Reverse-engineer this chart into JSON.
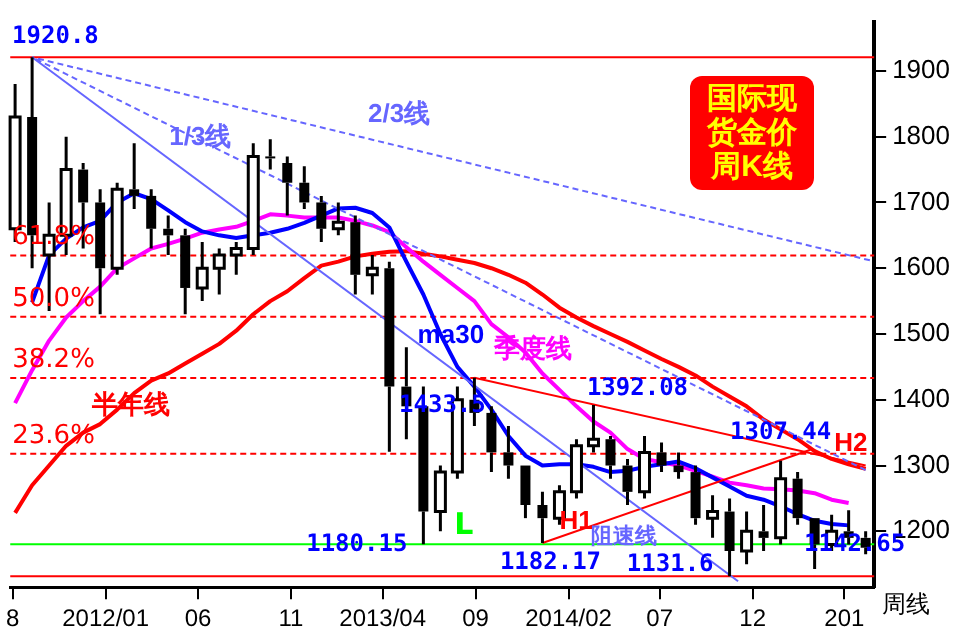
{
  "chart_data": {
    "type": "candlestick",
    "title": "国际现货金价周K线",
    "xlabel": "周线",
    "x": [
      "2011-08-05",
      "2011-09-02",
      "2011-09-30",
      "2011-10-28",
      "2011-11-25",
      "2011-12-23",
      "2012-01-20",
      "2012-02-17",
      "2012-03-16",
      "2012-04-13",
      "2012-05-11",
      "2012-06-08",
      "2012-07-06",
      "2012-08-03",
      "2012-08-31",
      "2012-09-28",
      "2012-10-26",
      "2012-11-23",
      "2012-12-21",
      "2013-01-18",
      "2013-02-15",
      "2013-03-15",
      "2013-04-12",
      "2013-05-10",
      "2013-06-07",
      "2013-07-05",
      "2013-08-02",
      "2013-08-30",
      "2013-09-27",
      "2013-10-25",
      "2013-11-22",
      "2013-12-20",
      "2014-01-17",
      "2014-02-14",
      "2014-03-14",
      "2014-04-11",
      "2014-05-09",
      "2014-06-06",
      "2014-07-04",
      "2014-08-01",
      "2014-08-29",
      "2014-09-26",
      "2014-10-24",
      "2014-11-21",
      "2014-12-19",
      "2015-01-16",
      "2015-02-13",
      "2015-03-13",
      "2015-04-10",
      "2015-05-08",
      "2015-06-05"
    ],
    "ohlc": [
      [
        1660,
        1880,
        1640,
        1830
      ],
      [
        1830,
        1920.8,
        1600,
        1650
      ],
      [
        1620,
        1700,
        1535,
        1650
      ],
      [
        1650,
        1800,
        1620,
        1750
      ],
      [
        1750,
        1760,
        1630,
        1700
      ],
      [
        1700,
        1720,
        1530,
        1600
      ],
      [
        1600,
        1730,
        1590,
        1720
      ],
      [
        1720,
        1790,
        1690,
        1710
      ],
      [
        1710,
        1720,
        1630,
        1660
      ],
      [
        1660,
        1680,
        1620,
        1650
      ],
      [
        1650,
        1660,
        1530,
        1570
      ],
      [
        1570,
        1640,
        1550,
        1600
      ],
      [
        1600,
        1630,
        1560,
        1620
      ],
      [
        1620,
        1640,
        1590,
        1630
      ],
      [
        1630,
        1790,
        1620,
        1770
      ],
      [
        1770,
        1796,
        1750,
        1770
      ],
      [
        1760,
        1770,
        1680,
        1730
      ],
      [
        1730,
        1755,
        1690,
        1700
      ],
      [
        1700,
        1710,
        1640,
        1660
      ],
      [
        1660,
        1700,
        1650,
        1670
      ],
      [
        1670,
        1680,
        1560,
        1590
      ],
      [
        1590,
        1620,
        1560,
        1600
      ],
      [
        1600,
        1610,
        1321,
        1420
      ],
      [
        1420,
        1480,
        1340,
        1390
      ],
      [
        1390,
        1420,
        1180.15,
        1230
      ],
      [
        1230,
        1300,
        1200,
        1290
      ],
      [
        1290,
        1420,
        1280,
        1400
      ],
      [
        1400,
        1433.5,
        1360,
        1380
      ],
      [
        1380,
        1390,
        1290,
        1320
      ],
      [
        1320,
        1360,
        1280,
        1300
      ],
      [
        1300,
        1300,
        1220,
        1240
      ],
      [
        1240,
        1260,
        1182.17,
        1220
      ],
      [
        1220,
        1270,
        1210,
        1260
      ],
      [
        1260,
        1340,
        1250,
        1330
      ],
      [
        1330,
        1392.08,
        1320,
        1340
      ],
      [
        1340,
        1345,
        1280,
        1300
      ],
      [
        1300,
        1310,
        1240,
        1260
      ],
      [
        1260,
        1345,
        1250,
        1320
      ],
      [
        1320,
        1335,
        1290,
        1300
      ],
      [
        1300,
        1320,
        1280,
        1290
      ],
      [
        1290,
        1300,
        1210,
        1220
      ],
      [
        1220,
        1255,
        1190,
        1230
      ],
      [
        1230,
        1250,
        1131.6,
        1170
      ],
      [
        1170,
        1230,
        1150,
        1200
      ],
      [
        1200,
        1240,
        1170,
        1190
      ],
      [
        1190,
        1307.44,
        1180,
        1280
      ],
      [
        1280,
        1290,
        1210,
        1220
      ],
      [
        1220,
        1220,
        1142.65,
        1180
      ],
      [
        1180,
        1225,
        1170,
        1200
      ],
      [
        1200,
        1232,
        1180,
        1190
      ],
      [
        1190,
        1200,
        1165,
        1175
      ]
    ],
    "series": [
      {
        "name": "ma30",
        "type": "line",
        "color": "#0000ff",
        "values": [
          null,
          1548,
          1620,
          1645,
          1662,
          1672,
          1700,
          1714,
          1705,
          1688,
          1670,
          1656,
          1650,
          1646,
          1650,
          1654,
          1660,
          1669,
          1680,
          1691,
          1692,
          1684,
          1662,
          1610,
          1560,
          1500,
          1450,
          1420,
          1385,
          1345,
          1315,
          1300,
          1302,
          1302,
          1298,
          1290,
          1292,
          1298,
          1302,
          1306,
          1296,
          1282,
          1268,
          1254,
          1248,
          1238,
          1226,
          1216,
          1211,
          1209,
          null
        ]
      },
      {
        "name": "季度线",
        "type": "line",
        "color": "#ff00ff",
        "values": [
          1395,
          1445,
          1490,
          1525,
          1550,
          1572,
          1600,
          1615,
          1630,
          1637,
          1645,
          1654,
          1659,
          1663,
          1672,
          1682,
          1680,
          1677,
          1677,
          1677,
          1672,
          1665,
          1655,
          1632,
          1610,
          1590,
          1570,
          1550,
          1515,
          1495,
          1472,
          1440,
          1415,
          1390,
          1367,
          1350,
          1325,
          1310,
          1305,
          1300,
          1292,
          1283,
          1274,
          1270,
          1265,
          1264,
          1262,
          1258,
          1248,
          1243,
          null
        ]
      },
      {
        "name": "半年线",
        "type": "line",
        "color": "#ff0000",
        "values": [
          1228,
          1270,
          1300,
          1330,
          1350,
          1363,
          1385,
          1410,
          1429,
          1440,
          1455,
          1470,
          1485,
          1505,
          1530,
          1550,
          1565,
          1585,
          1604,
          1610,
          1618,
          1622,
          1625,
          1626,
          1622,
          1618,
          1613,
          1608,
          1600,
          1590,
          1578,
          1560,
          1540,
          1525,
          1512,
          1500,
          1488,
          1475,
          1462,
          1450,
          1437,
          1420,
          1405,
          1390,
          1370,
          1355,
          1340,
          1322,
          1310,
          1302,
          1295
        ]
      },
      {
        "name": "1/3线",
        "type": "line",
        "color": "#6666ff",
        "line_style": "dashed",
        "x": [
          "2011-09-02",
          "2015-06-05"
        ],
        "values": [
          1920.8,
          1293
        ]
      },
      {
        "name": "2/3线",
        "type": "line",
        "color": "#6666ff",
        "line_style": "dashed",
        "x": [
          "2011-09-02",
          "2015-06-12"
        ],
        "values": [
          1920.8,
          1612
        ]
      },
      {
        "name": "阻速线",
        "type": "line",
        "color": "#6666ff",
        "x": [
          "2011-09-02",
          "2014-11-07"
        ],
        "values": [
          1920.8,
          1124
        ]
      },
      {
        "name": "H1",
        "type": "line",
        "color": "#ff0000",
        "x": [
          "2013-12-20",
          "2015-03-06"
        ],
        "values": [
          1182.17,
          1324
        ]
      },
      {
        "name": "H2",
        "type": "line",
        "color": "#ff0000",
        "x": [
          "2013-08-30",
          "2015-06-05"
        ],
        "values": [
          1433.5,
          1300
        ]
      }
    ],
    "ref_lines": [
      {
        "axis": "y",
        "value": 1920.8,
        "color": "#ff0000",
        "line_style": "solid"
      },
      {
        "axis": "y",
        "value": 1619.3,
        "color": "#ff0000",
        "line_style": "dashed"
      },
      {
        "axis": "y",
        "value": 1526.2,
        "color": "#ff0000",
        "line_style": "dashed"
      },
      {
        "axis": "y",
        "value": 1433.1,
        "color": "#ff0000",
        "line_style": "dashed"
      },
      {
        "axis": "y",
        "value": 1317.9,
        "color": "#ff0000",
        "line_style": "dashed"
      },
      {
        "axis": "y",
        "value": 1180.15,
        "label": "L",
        "color": "#00ff00",
        "line_style": "solid"
      },
      {
        "axis": "y",
        "value": 1131.6,
        "color": "#ff0000",
        "line_style": "solid"
      }
    ],
    "annotations": [
      {
        "text": "1920.8",
        "x": "2011-09-02",
        "y": 1920.8
      },
      {
        "text": "1433.5",
        "x": "2013-08-30",
        "y": 1433.5
      },
      {
        "text": "1392.08",
        "x": "2014-03-14",
        "y": 1392.08
      },
      {
        "text": "1307.44",
        "x": "2015-01-16",
        "y": 1307.44
      },
      {
        "text": "1182.17",
        "x": "2013-12-20",
        "y": 1182.17
      },
      {
        "text": "1131.6",
        "x": "2014-10-24",
        "y": 1131.6
      },
      {
        "text": "1142.65",
        "x": "2015-03-13",
        "y": 1142.65
      },
      {
        "text": "1180.15",
        "x": "2013-06-07",
        "y": 1180.15
      },
      {
        "text": "61.8%",
        "y": 1619.3
      },
      {
        "text": "50.0%",
        "y": 1526.2
      },
      {
        "text": "38.2%",
        "y": 1433.1
      },
      {
        "text": "23.6%",
        "y": 1317.9
      }
    ],
    "xlim": [
      "2011-07-28",
      "2015-06-19"
    ],
    "xticks": [
      {
        "value": "2011-08",
        "label": "8"
      },
      {
        "value": "2012-01",
        "label": "2012/01"
      },
      {
        "value": "2012-06",
        "label": "06"
      },
      {
        "value": "2012-11",
        "label": "11"
      },
      {
        "value": "2013-04",
        "label": "2013/04"
      },
      {
        "value": "2013-09",
        "label": "09"
      },
      {
        "value": "2014-02",
        "label": "2014/02"
      },
      {
        "value": "2014-07",
        "label": "07"
      },
      {
        "value": "2014-12",
        "label": "12"
      },
      {
        "value": "2015-05",
        "label": "201"
      }
    ],
    "ylim": [
      1115,
      1975
    ],
    "yticks": [
      1200,
      1300,
      1400,
      1500,
      1600,
      1700,
      1800,
      1900
    ],
    "grid": false,
    "legend": false,
    "marker": "none",
    "line_style": "solid"
  }
}
